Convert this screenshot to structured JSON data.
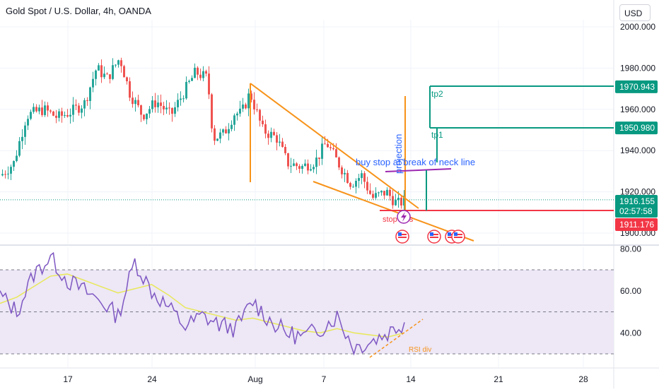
{
  "title": "Gold Spot / U.S. Dollar, 4h, OANDA",
  "currency_button": "USD",
  "colors": {
    "up": "#26a69a",
    "down": "#ef5350",
    "orange": "#f7931a",
    "green_line": "#089981",
    "red_line": "#f23645",
    "purple": "#9c27b0",
    "blue_text": "#2962ff",
    "rsi_line": "#7e57c2",
    "rsi_ma": "#e8e85a",
    "rsi_band": "#ede7f6",
    "price_line": "#089981",
    "stop_text": "#f23645"
  },
  "price_axis": {
    "ticks": [
      "2000.000",
      "1980.000",
      "1960.000",
      "1940.000",
      "1920.000",
      "1900.000"
    ],
    "labels": [
      {
        "text": "1970.943",
        "color": "#089981",
        "kind": "tp2"
      },
      {
        "text": "1950.980",
        "color": "#089981",
        "kind": "tp1"
      },
      {
        "text": "1916.155",
        "color": "#089981",
        "kind": "last"
      },
      {
        "text": "02:57:58",
        "color": "#089981",
        "kind": "countdown"
      },
      {
        "text": "1911.176",
        "color": "#f23645",
        "kind": "stop"
      }
    ]
  },
  "rsi_axis": {
    "ticks": [
      "80.00",
      "60.00",
      "40.00"
    ]
  },
  "time_axis": {
    "ticks": [
      "17",
      "24",
      "Aug",
      "7",
      "14",
      "21",
      "28"
    ]
  },
  "annotations": {
    "tp2": "tp2",
    "tp1": "tp1",
    "neck_line": "buy stop at break of neck line",
    "projection": "projection",
    "stop": "stop loss",
    "rsi_div": "RSI div"
  },
  "chart_data": [
    {
      "type": "candlestick",
      "title": "Gold Spot / U.S. Dollar, 4h, OANDA",
      "ylim": [
        1890,
        2003
      ],
      "y_ticks": [
        1900,
        1920,
        1940,
        1960,
        1980,
        2000
      ],
      "x_ticks": [
        "17",
        "24",
        "Aug",
        "7",
        "14",
        "21",
        "28"
      ],
      "close_path": [
        [
          "Jul 13",
          1928
        ],
        [
          "Jul 14",
          1934
        ],
        [
          "Jul 15",
          1953
        ],
        [
          "Jul 16",
          1960
        ],
        [
          "Jul 17",
          1956
        ],
        [
          "Jul 18",
          1961
        ],
        [
          "Jul 19",
          1975
        ],
        [
          "Jul 20",
          1969
        ],
        [
          "Jul 21",
          1961
        ],
        [
          "Jul 24",
          1957
        ],
        [
          "Jul 25",
          1964
        ],
        [
          "Jul 26",
          1971
        ],
        [
          "Jul 27",
          1946
        ],
        [
          "Jul 28",
          1959
        ],
        [
          "Jul 31",
          1965
        ],
        [
          "Aug 1",
          1945
        ],
        [
          "Aug 2",
          1937
        ],
        [
          "Aug 3",
          1933
        ],
        [
          "Aug 4",
          1940
        ],
        [
          "Aug 7",
          1936
        ],
        [
          "Aug 8",
          1927
        ],
        [
          "Aug 9",
          1925
        ],
        [
          "Aug 10",
          1914
        ],
        [
          "Aug 11",
          1916
        ]
      ],
      "levels": {
        "tp2": 1970.943,
        "tp1": 1950.98,
        "last": 1916.155,
        "stop": 1911.176,
        "neck_line": 1930
      }
    },
    {
      "type": "line",
      "name": "RSI",
      "ylim": [
        28,
        82
      ],
      "y_ticks": [
        40,
        60,
        80
      ],
      "bands": [
        30,
        50,
        70
      ],
      "rsi_values": [
        58,
        50,
        68,
        76,
        65,
        60,
        55,
        48,
        74,
        60,
        52,
        43,
        48,
        44,
        42,
        55,
        46,
        40,
        38,
        42,
        48,
        33,
        36,
        40,
        45
      ],
      "ma_values": [
        54,
        57,
        62,
        67,
        68,
        65,
        62,
        59,
        61,
        63,
        58,
        52,
        50,
        48,
        46,
        47,
        45,
        43,
        41,
        40,
        42,
        40,
        39,
        38,
        40
      ]
    }
  ]
}
